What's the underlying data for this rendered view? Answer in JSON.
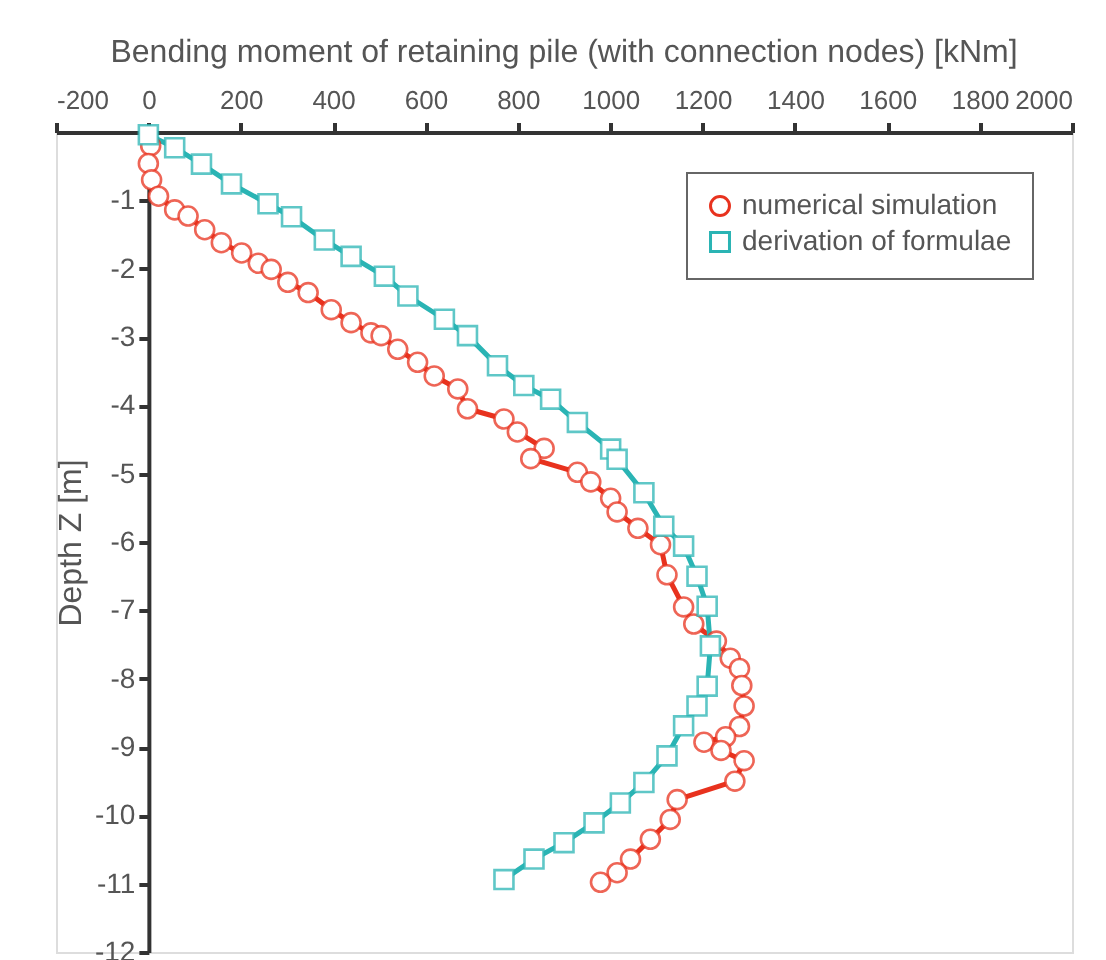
{
  "chart_data": {
    "type": "line",
    "title": "Bending moment of retaining pile (with connection nodes) [kNm]",
    "ylabel": "Depth Z [m]",
    "xlim": [
      -200,
      2000
    ],
    "xticks": [
      -200,
      0,
      200,
      400,
      600,
      800,
      1000,
      1200,
      1400,
      1600,
      1800,
      2000
    ],
    "ylim": [
      -12,
      0
    ],
    "yticks": [
      -1,
      -2,
      -3,
      -4,
      -5,
      -6,
      -7,
      -8,
      -9,
      -10,
      -11,
      -12
    ],
    "grid": false,
    "legend": "top right",
    "line_style": "solid",
    "series": [
      {
        "name": "numerical simulation",
        "color": "#e8321e",
        "marker": "circle",
        "x": [
          5,
          0,
          7,
          22,
          57,
          86,
          122,
          158,
          202,
          238,
          266,
          302,
          346,
          396,
          439,
          482,
          504,
          540,
          583,
          619,
          670,
          691,
          770,
          799,
          857,
          828,
          929,
          958,
          1001,
          1015,
          1060,
          1109,
          1123,
          1159,
          1181,
          1230,
          1260,
          1280,
          1285,
          1290,
          1280,
          1250,
          1203,
          1240,
          1290,
          1270,
          1145,
          1130,
          1087,
          1044,
          1015,
          979
        ],
        "values": [
          -0.2,
          -0.46,
          -0.7,
          -0.94,
          -1.14,
          -1.23,
          -1.43,
          -1.62,
          -1.77,
          -1.92,
          -2.01,
          -2.2,
          -2.35,
          -2.6,
          -2.79,
          -2.94,
          -2.98,
          -3.18,
          -3.37,
          -3.57,
          -3.76,
          -4.05,
          -4.2,
          -4.39,
          -4.63,
          -4.78,
          -4.98,
          -5.12,
          -5.36,
          -5.56,
          -5.8,
          -6.04,
          -6.48,
          -6.95,
          -7.2,
          -7.45,
          -7.7,
          -7.85,
          -8.1,
          -8.4,
          -8.7,
          -8.85,
          -8.93,
          -9.05,
          -9.2,
          -9.5,
          -9.77,
          -10.06,
          -10.35,
          -10.64,
          -10.84,
          -10.98
        ]
      },
      {
        "name": "derivation of formulae",
        "color": "#2ab4b4",
        "marker": "square",
        "x": [
          0,
          57,
          115,
          180,
          259,
          310,
          381,
          439,
          511,
          562,
          641,
          691,
          756,
          813,
          871,
          929,
          1001,
          1015,
          1073,
          1116,
          1159,
          1188,
          1210,
          1217,
          1210,
          1188,
          1159,
          1123,
          1073,
          1022,
          965,
          900,
          835,
          770
        ],
        "values": [
          -0.04,
          -0.23,
          -0.47,
          -0.76,
          -1.05,
          -1.24,
          -1.58,
          -1.82,
          -2.11,
          -2.4,
          -2.74,
          -2.98,
          -3.42,
          -3.71,
          -3.91,
          -4.25,
          -4.64,
          -4.79,
          -5.28,
          -5.77,
          -6.06,
          -6.5,
          -6.94,
          -7.52,
          -8.11,
          -8.4,
          -8.69,
          -9.13,
          -9.52,
          -9.82,
          -10.11,
          -10.4,
          -10.64,
          -10.94
        ]
      }
    ]
  }
}
